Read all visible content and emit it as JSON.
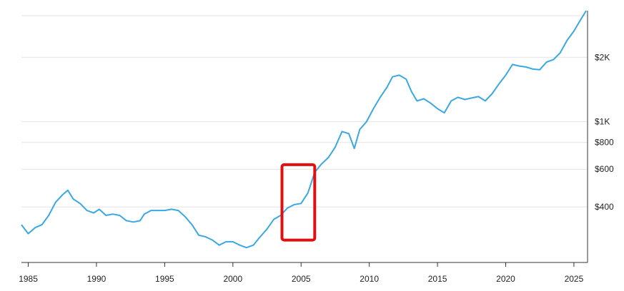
{
  "chart_data": {
    "type": "line",
    "y_scale": "log",
    "grid": true,
    "line_color": "#3aa8e4",
    "highlight_color": "#e01010",
    "x_ticks": [
      1985,
      1990,
      1995,
      2000,
      2005,
      2010,
      2015,
      2020,
      2025
    ],
    "x_tick_labels": [
      "1985",
      "1990",
      "1995",
      "2000",
      "2005",
      "2010",
      "2015",
      "2020",
      "2025"
    ],
    "y_ticks": [
      400,
      600,
      800,
      1000,
      2000
    ],
    "y_tick_labels": [
      "$400",
      "$600",
      "$800",
      "$1K",
      "$2K"
    ],
    "xlim": [
      1984.5,
      2026
    ],
    "ylim": [
      220,
      3300
    ],
    "highlight_range": {
      "x": [
        2003.6,
        2006.0
      ],
      "y": [
        280,
        630
      ]
    },
    "series": [
      {
        "x": [
          1984.5,
          1985,
          1985.5,
          1986,
          1986.5,
          1987,
          1987.5,
          1987.9,
          1988.3,
          1988.8,
          1989.3,
          1989.8,
          1990.2,
          1990.7,
          1991.2,
          1991.7,
          1992.2,
          1992.7,
          1993.2,
          1993.5,
          1994,
          1994.5,
          1995,
          1995.5,
          1996,
          1996.5,
          1997,
          1997.5,
          1998,
          1998.5,
          1999,
          1999.5,
          2000,
          2000.5,
          2001,
          2001.5,
          2002,
          2002.5,
          2003,
          2003.5,
          2004,
          2004.5,
          2005,
          2005.5,
          2006,
          2006.5,
          2007,
          2007.5,
          2008,
          2008.5,
          2008.9,
          2009.3,
          2009.8,
          2010.3,
          2010.8,
          2011.3,
          2011.7,
          2012.2,
          2012.7,
          2013.1,
          2013.5,
          2014,
          2014.5,
          2015,
          2015.5,
          2016,
          2016.5,
          2017,
          2017.5,
          2018,
          2018.5,
          2019,
          2019.5,
          2020,
          2020.5,
          2021,
          2021.5,
          2022,
          2022.5,
          2023,
          2023.5,
          2024,
          2024.5,
          2025,
          2025.5,
          2025.9
        ],
        "y": [
          330,
          300,
          320,
          330,
          365,
          420,
          455,
          478,
          435,
          415,
          385,
          375,
          390,
          365,
          370,
          365,
          345,
          340,
          345,
          370,
          385,
          385,
          385,
          390,
          385,
          360,
          330,
          295,
          290,
          280,
          265,
          275,
          275,
          265,
          258,
          265,
          290,
          315,
          350,
          365,
          395,
          410,
          415,
          465,
          580,
          635,
          680,
          760,
          900,
          880,
          750,
          920,
          1000,
          1150,
          1300,
          1450,
          1620,
          1650,
          1580,
          1380,
          1250,
          1280,
          1220,
          1150,
          1100,
          1250,
          1300,
          1270,
          1290,
          1310,
          1250,
          1350,
          1500,
          1650,
          1850,
          1820,
          1800,
          1760,
          1750,
          1900,
          1950,
          2100,
          2400,
          2650,
          3000,
          3300
        ]
      }
    ]
  }
}
